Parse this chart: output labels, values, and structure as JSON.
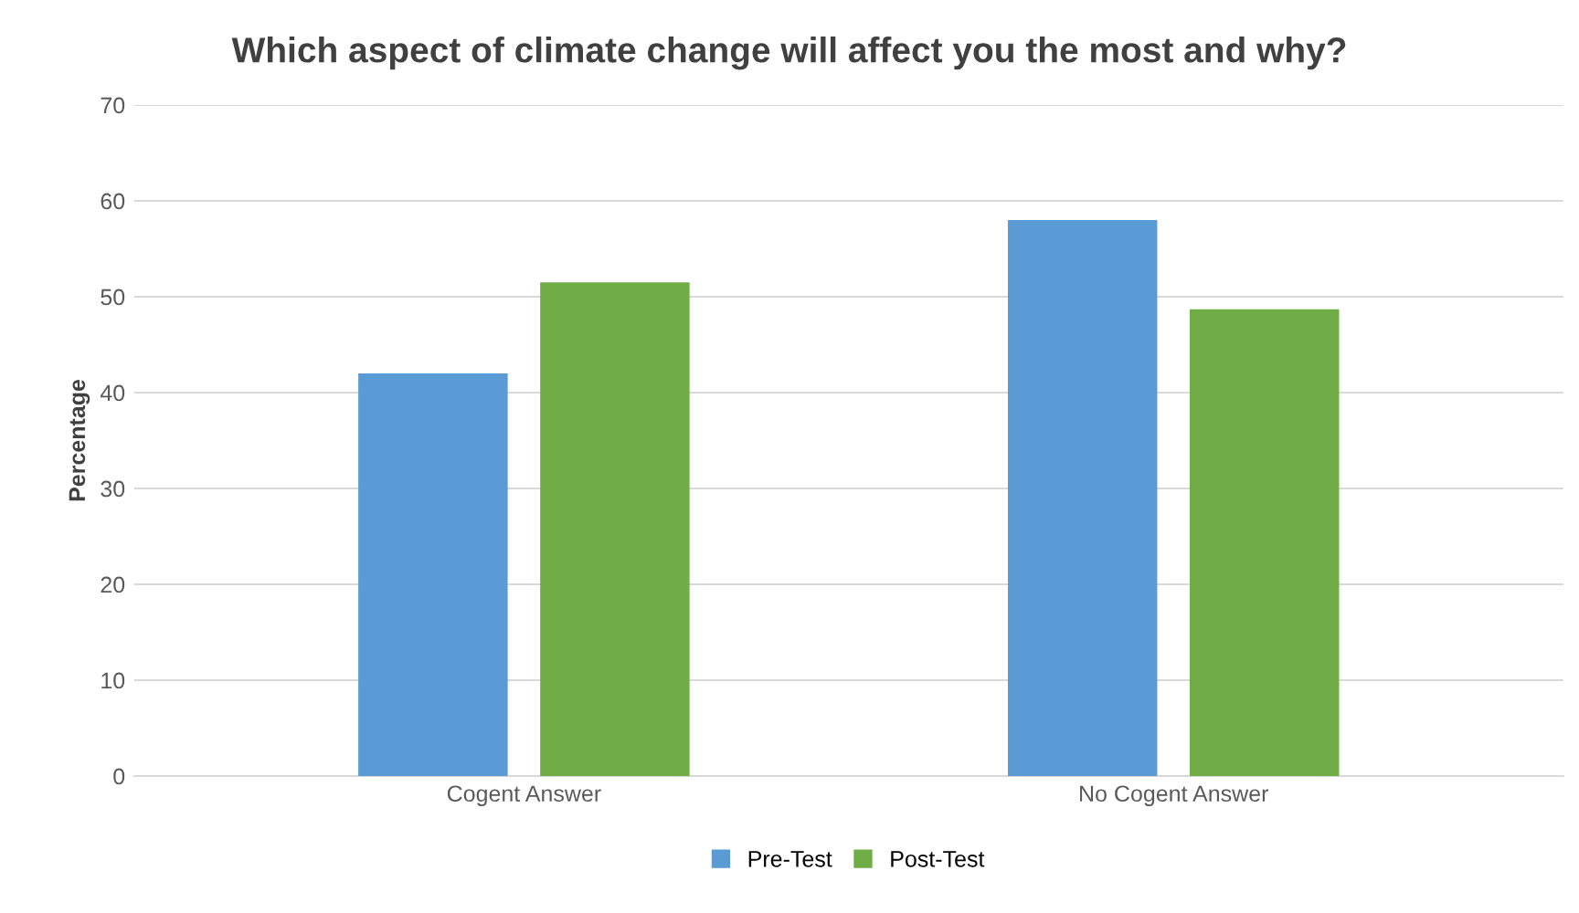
{
  "chart_data": {
    "type": "bar",
    "title": "Which aspect of climate change will affect you the most and why?",
    "ylabel": "Percentage",
    "categories": [
      "Cogent Answer",
      "No Cogent Answer"
    ],
    "series": [
      {
        "name": "Pre-Test",
        "color": "#5b9bd5",
        "values": [
          42,
          58
        ]
      },
      {
        "name": "Post-Test",
        "color": "#70ad47",
        "values": [
          51.5,
          48.7
        ]
      }
    ],
    "ylim": [
      0,
      70
    ],
    "yticks": [
      0,
      10,
      20,
      30,
      40,
      50,
      60,
      70
    ],
    "grid": "y",
    "legend": "bottom"
  }
}
